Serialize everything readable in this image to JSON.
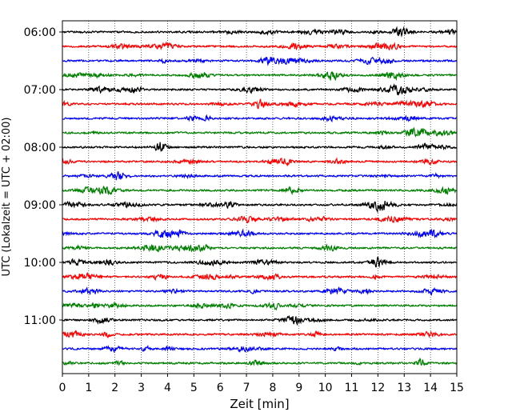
{
  "chart_data": {
    "type": "line",
    "title": "",
    "xlabel": "Zeit  [min]",
    "ylabel": "UTC (Lokalzeit = UTC + 02:00)",
    "xlim": [
      0,
      15
    ],
    "x_ticks": [
      0,
      1,
      2,
      3,
      4,
      5,
      6,
      7,
      8,
      9,
      10,
      11,
      12,
      13,
      14,
      15
    ],
    "y_tick_labels": [
      "06:00",
      "07:00",
      "08:00",
      "09:00",
      "10:00",
      "11:00"
    ],
    "trace_start_times": [
      "06:00",
      "06:15",
      "06:30",
      "06:45",
      "07:00",
      "07:15",
      "07:30",
      "07:45",
      "08:00",
      "08:15",
      "08:30",
      "08:45",
      "09:00",
      "09:15",
      "09:30",
      "09:45",
      "10:00",
      "10:15",
      "10:30",
      "10:45",
      "11:00",
      "11:15",
      "11:30",
      "11:45"
    ],
    "trace_minutes_per_line": 15,
    "trace_colors": [
      "#000000",
      "#ff0000",
      "#0000ff",
      "#008000"
    ],
    "grid": "vertical dotted at each minute",
    "legend": "none"
  }
}
